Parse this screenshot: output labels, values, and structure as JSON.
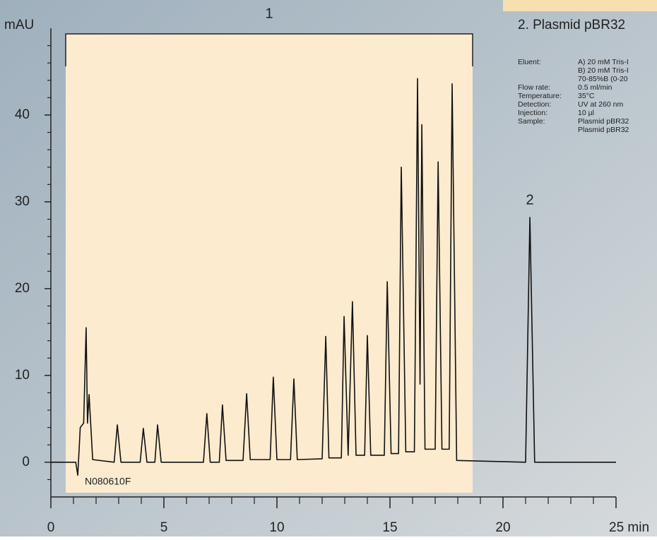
{
  "chart_data": {
    "type": "line",
    "y_label": "mAU",
    "sample_code": "N080610F",
    "fraction_labels": [
      "1",
      "2"
    ],
    "panel_title": "2. Plasmid pBR32",
    "conditions": [
      {
        "label": "Eluent:",
        "lines": [
          "A) 20 mM Tris-I",
          "B) 20 mM Tris-I",
          "70-85%B (0-20"
        ]
      },
      {
        "label": "Flow rate:",
        "lines": [
          "0.5 ml/min"
        ]
      },
      {
        "label": "Temperature:",
        "lines": [
          "35°C"
        ]
      },
      {
        "label": "Detection:",
        "lines": [
          "UV at 260 nm"
        ]
      },
      {
        "label": "Injection:",
        "lines": [
          "10 µl"
        ]
      },
      {
        "label": "Sample:",
        "lines": [
          "Plasmid pBR32",
          "Plasmid pBR32"
        ]
      }
    ],
    "x": [
      0,
      1.1,
      1.19,
      1.3,
      1.45,
      1.56,
      1.62,
      1.69,
      1.85,
      2.8,
      2.94,
      3.1,
      3.95,
      4.09,
      4.25,
      4.6,
      4.72,
      4.88,
      6.75,
      6.9,
      7.05,
      7.45,
      7.59,
      7.75,
      8.5,
      8.66,
      8.82,
      9.7,
      9.84,
      10.0,
      10.6,
      10.75,
      10.9,
      12.0,
      12.16,
      12.3,
      12.85,
      12.97,
      13.15,
      13.34,
      13.5,
      13.88,
      14.0,
      14.15,
      14.75,
      14.88,
      15.05,
      15.38,
      15.5,
      15.7,
      16.08,
      16.22,
      16.33,
      16.41,
      16.55,
      17.0,
      17.13,
      17.3,
      17.62,
      17.75,
      17.95,
      21.0,
      21.19,
      21.4,
      25
    ],
    "series": [
      {
        "color": "#111111",
        "values": [
          0,
          0,
          -1.5,
          4,
          4.5,
          15.5,
          4.5,
          7.8,
          0.3,
          0,
          4.3,
          0,
          0,
          3.9,
          0,
          0,
          4.3,
          0,
          0,
          5.6,
          0,
          0,
          6.6,
          0.2,
          0.2,
          7.9,
          0.3,
          0.3,
          9.8,
          0.3,
          0.3,
          9.6,
          0.3,
          0.4,
          14.5,
          0.5,
          0.5,
          16.8,
          0.8,
          18.5,
          0.8,
          0.8,
          14.6,
          0.8,
          0.8,
          20.8,
          1,
          1,
          34,
          1.2,
          1.2,
          44.2,
          9,
          38.9,
          1.5,
          1.5,
          34.6,
          1.5,
          1.5,
          43.6,
          0.2,
          0,
          28.2,
          0,
          0
        ]
      }
    ],
    "xlim": [
      0,
      25
    ],
    "xticks": [
      0,
      5,
      10,
      15,
      20,
      {
        "value": 25,
        "label": "25 min"
      }
    ],
    "x_minor_ticks": [
      1,
      2,
      3,
      4,
      6,
      7,
      8,
      9,
      11,
      12,
      13,
      14,
      16,
      17,
      18,
      19,
      21,
      22,
      23,
      24
    ],
    "ylim": [
      -4,
      50
    ],
    "yticks": [
      0,
      10,
      20,
      30,
      40
    ],
    "y_minor_ticks": [
      -2,
      2,
      4,
      6,
      8,
      12,
      14,
      16,
      18,
      22,
      24,
      26,
      28,
      32,
      34,
      36,
      38,
      42,
      44,
      46,
      48
    ]
  }
}
